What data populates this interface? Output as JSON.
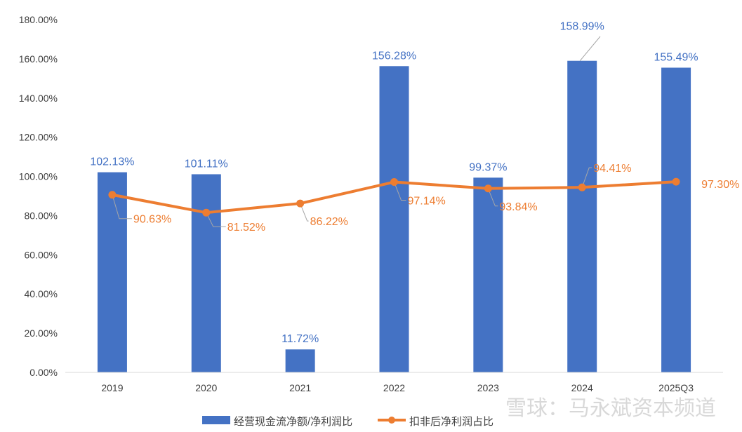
{
  "chart_data": {
    "type": "bar",
    "title": "",
    "xlabel": "",
    "ylabel": "",
    "ylim": [
      0,
      180
    ],
    "yticks": [
      "0.00%",
      "20.00%",
      "40.00%",
      "60.00%",
      "80.00%",
      "100.00%",
      "120.00%",
      "140.00%",
      "160.00%",
      "180.00%"
    ],
    "categories": [
      "2019",
      "2020",
      "2021",
      "2022",
      "2023",
      "2024",
      "2025Q3"
    ],
    "grid": false,
    "legend_position": "bottom",
    "series": [
      {
        "name": "经营现金流净额/净利润比",
        "type": "bar",
        "color": "#4472c4",
        "values": [
          102.13,
          101.11,
          11.72,
          156.28,
          99.37,
          158.99,
          155.49
        ],
        "labels": [
          "102.13%",
          "101.11%",
          "11.72%",
          "156.28%",
          "99.37%",
          "158.99%",
          "155.49%"
        ]
      },
      {
        "name": "扣非后净利润占比",
        "type": "line",
        "color": "#ed7d31",
        "values": [
          90.63,
          81.52,
          86.22,
          97.14,
          93.84,
          94.41,
          97.3
        ],
        "labels": [
          "90.63%",
          "81.52%",
          "86.22%",
          "97.14%",
          "93.84%",
          "94.41%",
          "97.30%"
        ]
      }
    ]
  },
  "watermark": "雪球：马永斌资本频道"
}
